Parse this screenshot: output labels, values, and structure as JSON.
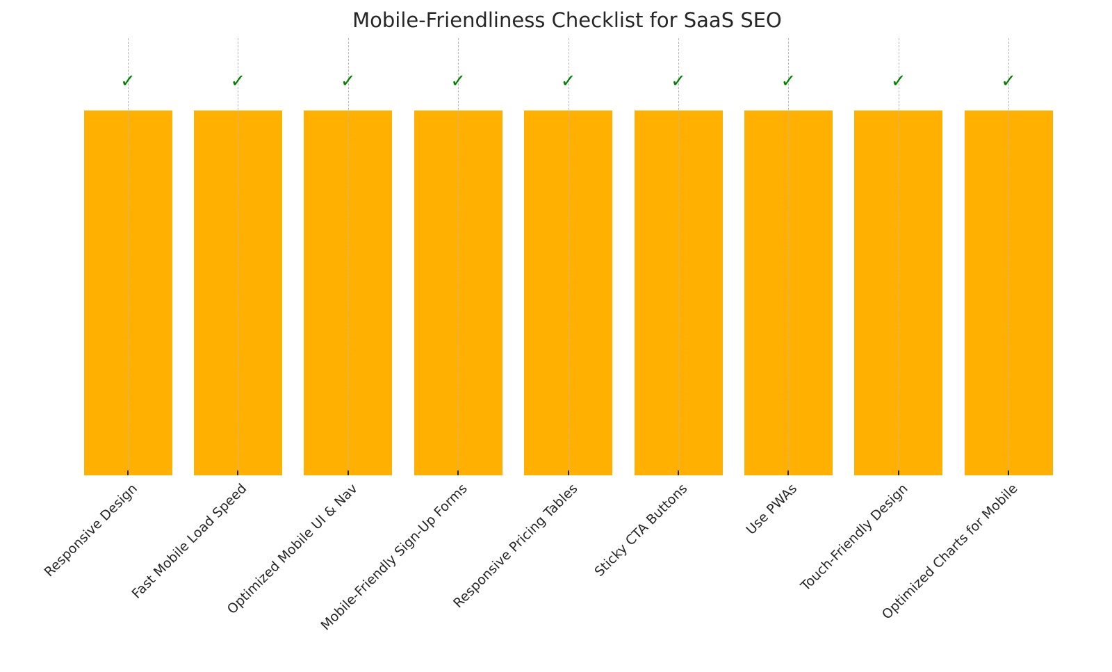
{
  "chart_data": {
    "type": "bar",
    "title": "Mobile-Friendliness Checklist for SaaS SEO",
    "xlabel": "",
    "ylabel": "",
    "categories": [
      "Responsive Design",
      "Fast Mobile Load Speed",
      "Optimized Mobile UI & Nav",
      "Mobile-Friendly Sign-Up Forms",
      "Responsive Pricing Tables",
      "Sticky CTA Buttons",
      "Use PWAs",
      "Touch-Friendly Design",
      "Optimized Charts for Mobile"
    ],
    "values": [
      1,
      1,
      1,
      1,
      1,
      1,
      1,
      1,
      1
    ],
    "annotations": [
      "✓",
      "✓",
      "✓",
      "✓",
      "✓",
      "✓",
      "✓",
      "✓",
      "✓"
    ],
    "ylim": [
      0,
      1.2
    ],
    "grid": "x-axis dashed vertical",
    "legend": "none",
    "y_axis_visible": false,
    "colors": {
      "bar": "#FFB000",
      "check": "#008000",
      "grid": "#b8b8b8",
      "text": "#262626"
    }
  }
}
